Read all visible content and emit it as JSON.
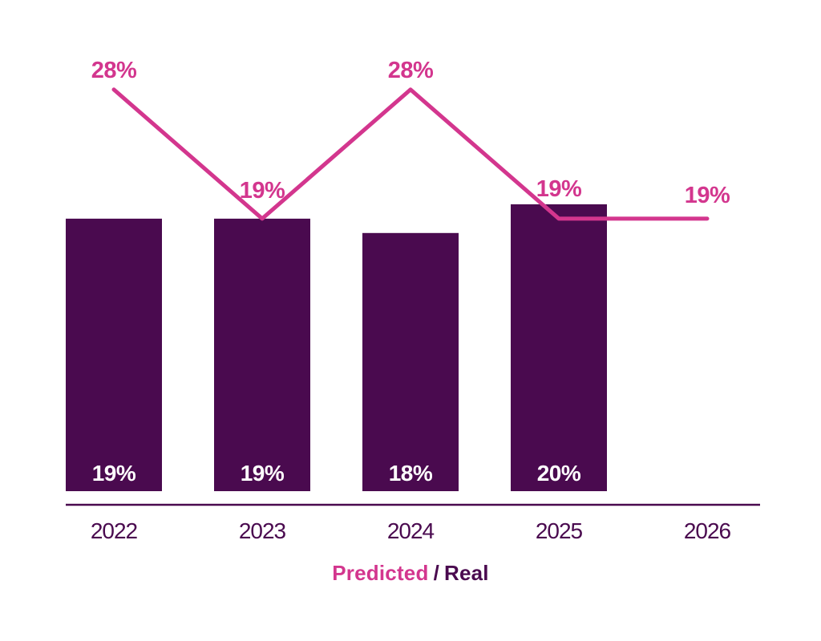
{
  "chart_data": {
    "type": "bar",
    "subtype": "bar-with-line-overlay",
    "categories": [
      "2022",
      "2023",
      "2024",
      "2025",
      "2026"
    ],
    "series": [
      {
        "name": "Real",
        "render_as": "bar",
        "values": [
          19,
          19,
          18,
          20,
          null
        ],
        "labels": [
          "19%",
          "19%",
          "18%",
          "20%",
          null
        ],
        "color": "#4a0a4f",
        "label_color": "#ffffff"
      },
      {
        "name": "Predicted",
        "render_as": "line",
        "values": [
          28,
          19,
          28,
          19,
          19
        ],
        "labels": [
          "28%",
          "19%",
          "28%",
          "19%",
          "19%"
        ],
        "color": "#d3368e",
        "label_color": "#d3368e"
      }
    ],
    "title": "",
    "xlabel": "",
    "ylabel": "",
    "ylim": [
      0,
      34
    ],
    "grid": false,
    "axis_color": "#4a0a4f",
    "tick_label_color": "#4a0a4f",
    "background": "#ffffff",
    "legend_position": "bottom-center"
  },
  "legend": {
    "predicted_label": "Predicted",
    "separator": "/",
    "real_label": "Real"
  },
  "colors": {
    "purple": "#4a0a4f",
    "pink": "#d3368e",
    "white": "#ffffff"
  }
}
